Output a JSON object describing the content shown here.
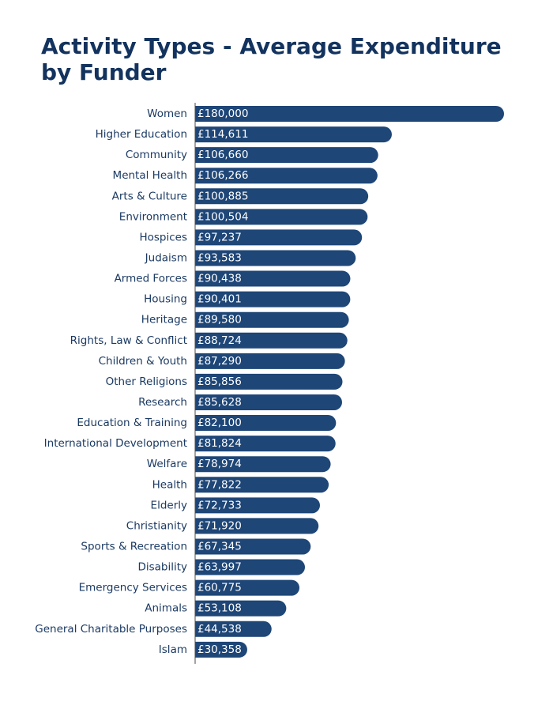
{
  "chart_data": {
    "type": "bar",
    "orientation": "horizontal",
    "title": "Activity Types - Average Expenditure by Funder",
    "xlabel": "",
    "ylabel": "",
    "xlim": [
      0,
      180000
    ],
    "grid": false,
    "bar_color": "#1e4677",
    "axis_color": "#4a4a4a",
    "value_prefix": "£",
    "categories": [
      "Women",
      "Higher Education",
      "Community",
      "Mental Health",
      "Arts & Culture",
      "Environment",
      "Hospices",
      "Judaism",
      "Armed Forces",
      "Housing",
      "Heritage",
      "Rights, Law & Conflict",
      "Children & Youth",
      "Other Religions",
      "Research",
      "Education & Training",
      "International Development",
      "Welfare",
      "Health",
      "Elderly",
      "Christianity",
      "Sports & Recreation",
      "Disability",
      "Emergency Services",
      "Animals",
      "General Charitable Purposes",
      "Islam"
    ],
    "values": [
      180000,
      114611,
      106660,
      106266,
      100885,
      100504,
      97237,
      93583,
      90438,
      90401,
      89580,
      88724,
      87290,
      85856,
      85628,
      82100,
      81824,
      78974,
      77822,
      72733,
      71920,
      67345,
      63997,
      60775,
      53108,
      44538,
      30358
    ],
    "value_labels": [
      "£180,000",
      "£114,611",
      "£106,660",
      "£106,266",
      "£100,885",
      "£100,504",
      "£97,237",
      "£93,583",
      "£90,438",
      "£90,401",
      "£89,580",
      "£88,724",
      "£87,290",
      "£85,856",
      "£85,628",
      "£82,100",
      "£81,824",
      "£78,974",
      "£77,822",
      "£72,733",
      "£71,920",
      "£67,345",
      "£63,997",
      "£60,775",
      "£53,108",
      "£44,538",
      "£30,358"
    ]
  }
}
